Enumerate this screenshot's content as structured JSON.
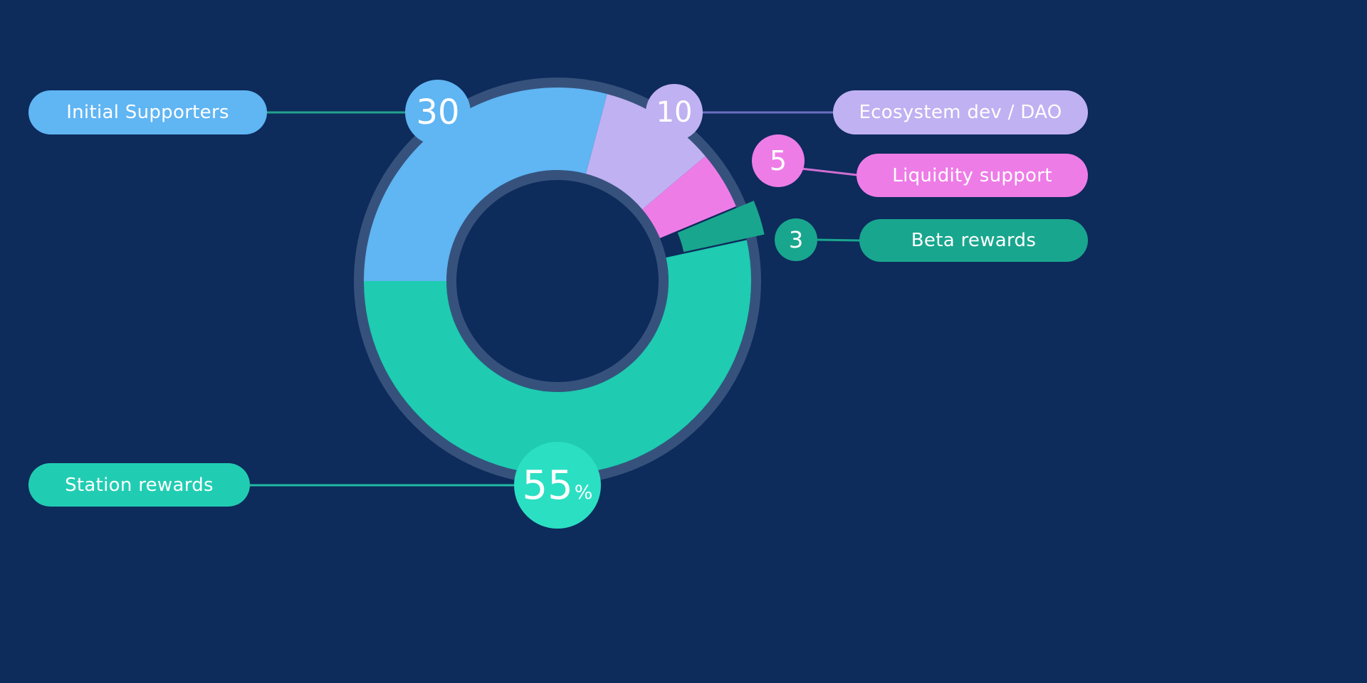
{
  "chart_style": {
    "background": "#0d2b5b",
    "outline_color": "#36527c",
    "text_color": "#ffffff"
  },
  "chart_data": {
    "type": "pie",
    "donut": true,
    "title": "",
    "legend_position": "callouts",
    "segments": [
      {
        "id": "initial-supporters",
        "label": "Initial Supporters",
        "value": 30,
        "color": "#60b5f3",
        "line_color": "#23a28c"
      },
      {
        "id": "ecosystem-dev-dao",
        "label": "Ecosystem dev / DAO",
        "value": 10,
        "color": "#c0b1f2",
        "line_color": "#6a6fbe"
      },
      {
        "id": "liquidity-support",
        "label": "Liquidity support",
        "value": 5,
        "color": "#ee7ce7",
        "line_color": "#cf6fd2"
      },
      {
        "id": "beta-rewards",
        "label": "Beta rewards",
        "value": 3,
        "color": "#19a68e",
        "line_color": "#19a68e",
        "exploded": true
      },
      {
        "id": "station-rewards",
        "label": "Station rewards",
        "value": 55,
        "suffix": "%",
        "color": "#1fcbb1",
        "badge_color": "#2bdfc3",
        "pill_color": "#21cdb2",
        "line_color": "#21b9a2"
      }
    ]
  }
}
